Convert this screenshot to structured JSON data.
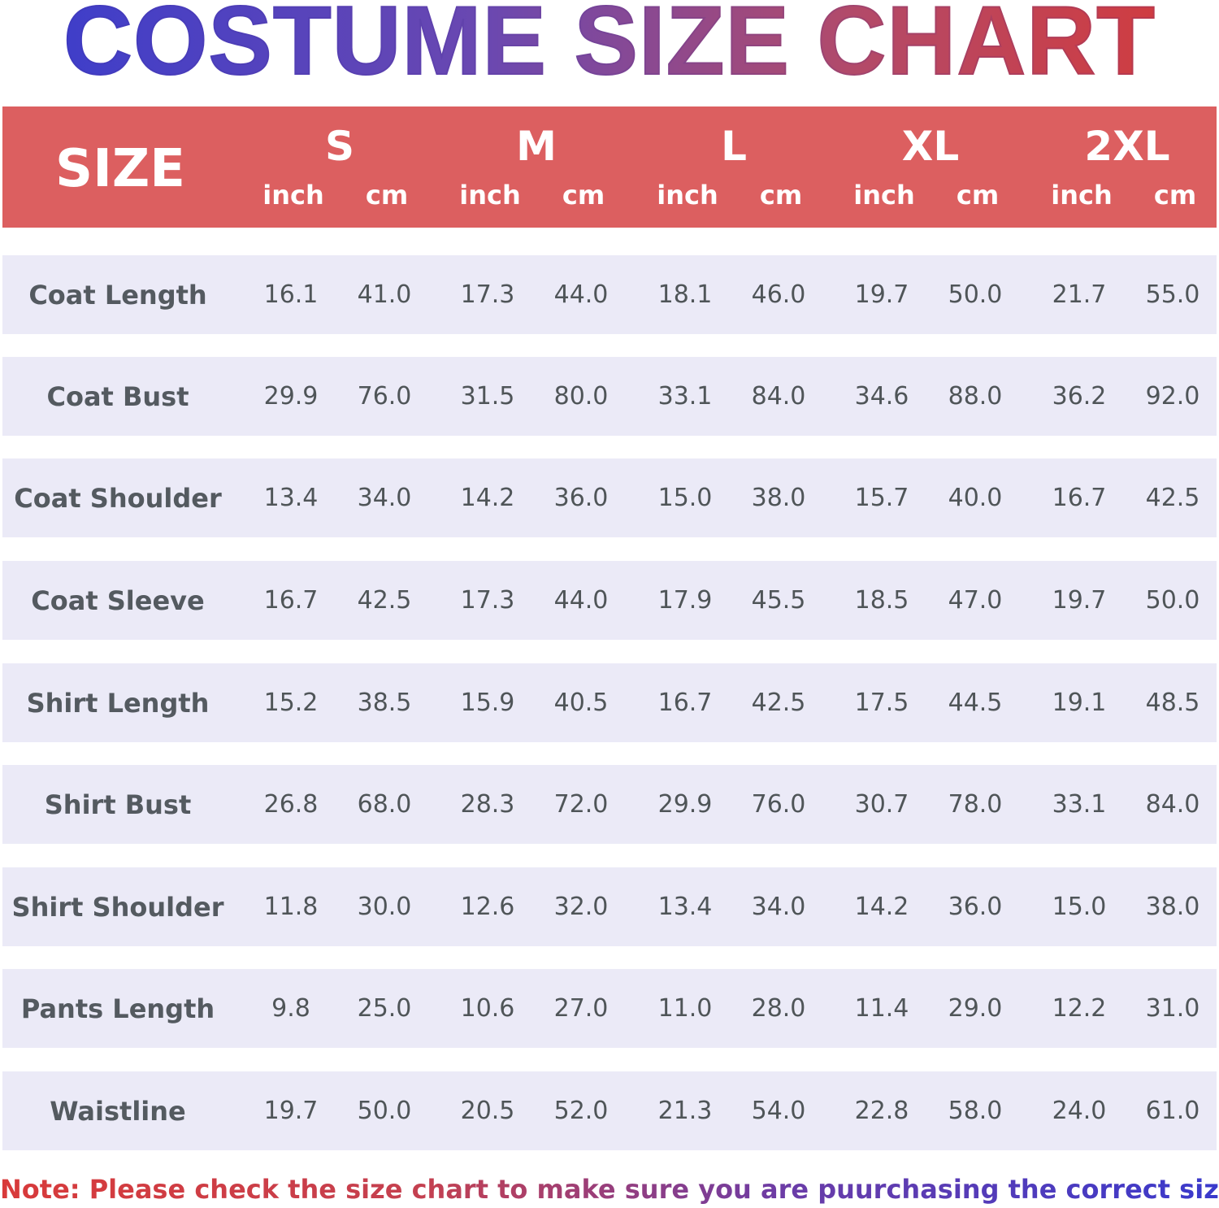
{
  "title": "COSTUME SIZE CHART",
  "header": {
    "size_label": "SIZE",
    "sizes": [
      "S",
      "M",
      "L",
      "XL",
      "2XL"
    ],
    "inch_label": "inch",
    "cm_label": "cm"
  },
  "rows": [
    {
      "label": "Coat Length",
      "values": [
        "16.1",
        "41.0",
        "17.3",
        "44.0",
        "18.1",
        "46.0",
        "19.7",
        "50.0",
        "21.7",
        "55.0"
      ]
    },
    {
      "label": "Coat Bust",
      "values": [
        "29.9",
        "76.0",
        "31.5",
        "80.0",
        "33.1",
        "84.0",
        "34.6",
        "88.0",
        "36.2",
        "92.0"
      ]
    },
    {
      "label": "Coat Shoulder",
      "values": [
        "13.4",
        "34.0",
        "14.2",
        "36.0",
        "15.0",
        "38.0",
        "15.7",
        "40.0",
        "16.7",
        "42.5"
      ]
    },
    {
      "label": "Coat Sleeve",
      "values": [
        "16.7",
        "42.5",
        "17.3",
        "44.0",
        "17.9",
        "45.5",
        "18.5",
        "47.0",
        "19.7",
        "50.0"
      ]
    },
    {
      "label": "Shirt Length",
      "values": [
        "15.2",
        "38.5",
        "15.9",
        "40.5",
        "16.7",
        "42.5",
        "17.5",
        "44.5",
        "19.1",
        "48.5"
      ]
    },
    {
      "label": "Shirt Bust",
      "values": [
        "26.8",
        "68.0",
        "28.3",
        "72.0",
        "29.9",
        "76.0",
        "30.7",
        "78.0",
        "33.1",
        "84.0"
      ]
    },
    {
      "label": "Shirt Shoulder",
      "values": [
        "11.8",
        "30.0",
        "12.6",
        "32.0",
        "13.4",
        "34.0",
        "14.2",
        "36.0",
        "15.0",
        "38.0"
      ]
    },
    {
      "label": "Pants Length",
      "values": [
        "9.8",
        "25.0",
        "10.6",
        "27.0",
        "11.0",
        "28.0",
        "11.4",
        "29.0",
        "12.2",
        "31.0"
      ]
    },
    {
      "label": "Waistline",
      "values": [
        "19.7",
        "50.0",
        "20.5",
        "52.0",
        "21.3",
        "54.0",
        "22.8",
        "58.0",
        "24.0",
        "61.0"
      ]
    }
  ],
  "note": "Note: Please check the size chart to make sure you are puurchasing the correct size.",
  "colors": {
    "header_bg": "#dc5f60",
    "row_bg": "#ebeaf7",
    "title_gradient_start": "#3a3dcc",
    "title_gradient_end": "#d43a3a"
  }
}
